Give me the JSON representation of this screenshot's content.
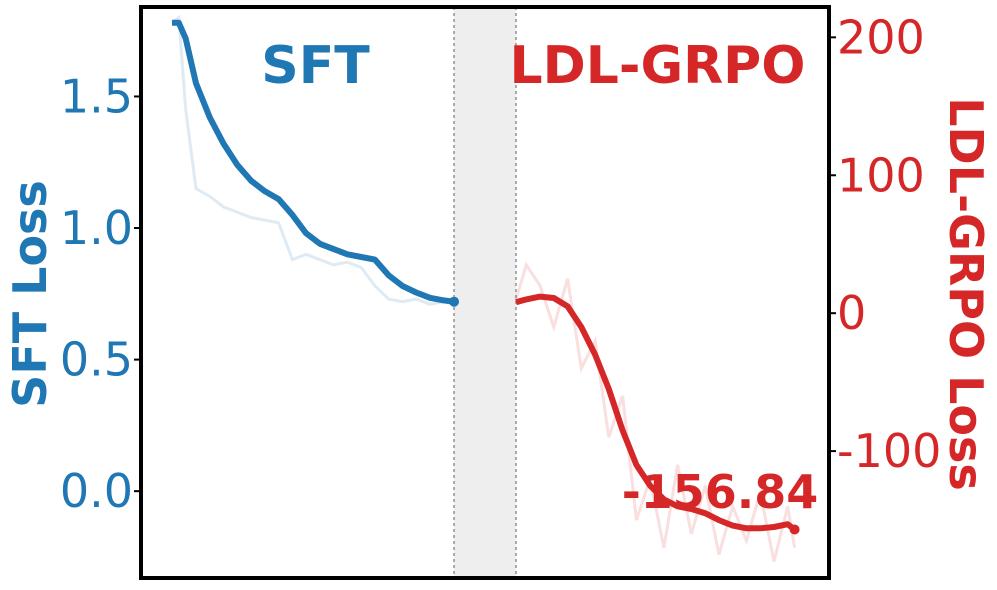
{
  "chart_data": {
    "type": "line",
    "colors": {
      "sft": "#1f77b4",
      "grpo": "#d62728",
      "gap": "#eeeeee",
      "gap_line": "#aaaaaa"
    },
    "x_range": [
      0,
      100
    ],
    "left_axis": {
      "label": "SFT Loss",
      "ylim": [
        -0.33,
        1.84
      ],
      "ticks": [
        0.0,
        0.5,
        1.0,
        1.5
      ],
      "tick_labels": [
        "0.0",
        "0.5",
        "1.0",
        "1.5"
      ]
    },
    "right_axis": {
      "label": "LDL-GRPO Loss",
      "ylim": [
        -192,
        222
      ],
      "ticks": [
        -100,
        0,
        100,
        200
      ],
      "tick_labels": [
        "-100",
        "0",
        "100",
        "200"
      ]
    },
    "gap_region": [
      45.5,
      54.5
    ],
    "phase_labels": {
      "sft": "SFT",
      "grpo": "LDL-GRPO"
    },
    "final_value_label": "-156.84",
    "series": [
      {
        "name": "SFT",
        "axis": "left",
        "x": [
          4.5,
          5.5,
          6.5,
          8,
          10,
          12,
          14,
          16,
          18,
          20,
          22,
          24,
          26,
          28,
          30,
          32,
          34,
          36,
          38,
          40,
          42,
          44,
          45.5
        ],
        "smoothed": [
          1.78,
          1.78,
          1.72,
          1.55,
          1.42,
          1.32,
          1.24,
          1.18,
          1.14,
          1.11,
          1.05,
          0.98,
          0.94,
          0.92,
          0.9,
          0.89,
          0.88,
          0.82,
          0.78,
          0.755,
          0.735,
          0.725,
          0.72
        ],
        "raw": [
          1.78,
          1.8,
          1.45,
          1.15,
          1.12,
          1.08,
          1.06,
          1.04,
          1.03,
          1.02,
          0.88,
          0.9,
          0.88,
          0.86,
          0.87,
          0.85,
          0.78,
          0.73,
          0.72,
          0.73,
          0.71,
          0.72,
          0.71
        ]
      },
      {
        "name": "LDL-GRPO",
        "axis": "right",
        "x": [
          54.5,
          56,
          58,
          60,
          62,
          64,
          66,
          68,
          70,
          72,
          74,
          76,
          78,
          80,
          82,
          84,
          86,
          88,
          90,
          92,
          94,
          95
        ],
        "smoothed": [
          8,
          10,
          12,
          11,
          5,
          -10,
          -30,
          -55,
          -85,
          -110,
          -125,
          -135,
          -140,
          -142,
          -145,
          -150,
          -154,
          -156,
          -156,
          -155,
          -153,
          -156.84
        ],
        "raw": [
          10,
          35,
          20,
          -10,
          25,
          -40,
          -20,
          -90,
          -60,
          -150,
          -120,
          -170,
          -110,
          -160,
          -125,
          -175,
          -140,
          -165,
          -130,
          -180,
          -140,
          -170
        ]
      }
    ]
  }
}
